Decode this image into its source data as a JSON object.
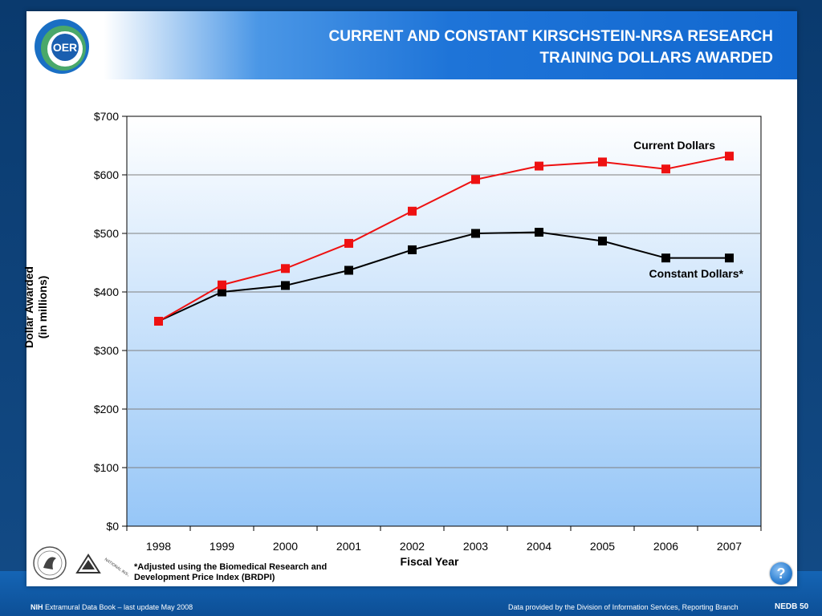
{
  "title_line1": "CURRENT AND CONSTANT KIRSCHSTEIN-NRSA RESEARCH",
  "title_line2": "TRAINING  DOLLARS AWARDED",
  "logo_text": "OER",
  "footnote": "*Adjusted using the Biomedical Research and Development Price Index (BRDPI)",
  "seal_text": "NATIONAL INSTITUTES OF HEALTH",
  "help_symbol": "?",
  "footer": {
    "nih": "NIH",
    "left": "Extramural Data Book – last update May 2008",
    "right": "Data provided by the Division of Information Services, Reporting Branch",
    "page": "NEDB 50"
  },
  "chart_data": {
    "type": "line",
    "title": "",
    "xlabel": "Fiscal Year",
    "ylabel_line1": "Dollar Awarded",
    "ylabel_line2": "(in millions)",
    "categories": [
      "1998",
      "1999",
      "2000",
      "2001",
      "2002",
      "2003",
      "2004",
      "2005",
      "2006",
      "2007"
    ],
    "ylim": [
      0,
      700
    ],
    "yticks": [
      0,
      100,
      200,
      300,
      400,
      500,
      600,
      700
    ],
    "ytick_labels": [
      "$0",
      "$100",
      "$200",
      "$300",
      "$400",
      "$500",
      "$600",
      "$700"
    ],
    "grid": true,
    "series": [
      {
        "name": "Current Dollars",
        "color": "#ee1111",
        "marker": "square",
        "values": [
          350,
          412,
          440,
          483,
          538,
          592,
          615,
          622,
          610,
          632
        ]
      },
      {
        "name": "Constant Dollars*",
        "color": "#000000",
        "marker": "square",
        "values": [
          350,
          400,
          411,
          437,
          472,
          500,
          502,
          487,
          458,
          458
        ]
      }
    ]
  }
}
